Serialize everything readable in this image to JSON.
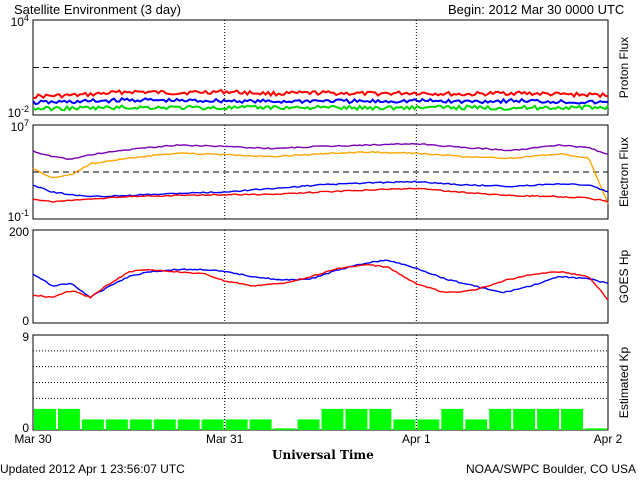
{
  "header": {
    "title": "Satellite Environment (3 day)",
    "begin": "Begin:  2012 Mar 30 0000 UTC"
  },
  "footer": {
    "updated": "Updated 2012 Apr  1 23:56:07 UTC",
    "credit": "NOAA/SWPC Boulder, CO USA",
    "xlabel": "Universal Time"
  },
  "x_ticks": [
    "Mar 30",
    "Mar 31",
    "Apr 1",
    "Apr 2"
  ],
  "colors": {
    "red": "#ff0000",
    "blue": "#0000ff",
    "green": "#00dd00",
    "purple": "#7b00b5",
    "orange": "#ffa500",
    "kp_bar": "#00ff00"
  },
  "chart_data": [
    {
      "type": "line",
      "panel": "proton",
      "ylabel": "Proton Flux",
      "yscale": "log",
      "ylim": [
        0.01,
        10000
      ],
      "y_tick_labels": [
        "10^4",
        "10^-2"
      ],
      "threshold": 10,
      "x": [
        0,
        0.25,
        0.5,
        0.75,
        1.0,
        1.25,
        1.5,
        1.75,
        2.0,
        2.25,
        2.5,
        2.75,
        3.0
      ],
      "series": [
        {
          "color": "red",
          "values": [
            0.15,
            0.18,
            0.3,
            0.25,
            0.3,
            0.22,
            0.25,
            0.22,
            0.25,
            0.2,
            0.25,
            0.2,
            0.18
          ]
        },
        {
          "color": "blue",
          "values": [
            0.06,
            0.07,
            0.09,
            0.08,
            0.08,
            0.07,
            0.08,
            0.07,
            0.08,
            0.07,
            0.08,
            0.07,
            0.06
          ]
        },
        {
          "color": "green",
          "values": [
            0.025,
            0.027,
            0.03,
            0.03,
            0.028,
            0.03,
            0.03,
            0.028,
            0.03,
            0.03,
            0.028,
            0.03,
            0.03
          ]
        }
      ]
    },
    {
      "type": "line",
      "panel": "electron",
      "ylabel": "Electron Flux",
      "yscale": "log",
      "ylim": [
        0.1,
        10000000
      ],
      "y_tick_labels": [
        "10^7",
        "10^-1"
      ],
      "threshold": 1000,
      "x": [
        0,
        0.1,
        0.2,
        0.3,
        0.5,
        0.75,
        1.0,
        1.25,
        1.5,
        1.75,
        2.0,
        2.25,
        2.5,
        2.75,
        2.9,
        3.0
      ],
      "series": [
        {
          "color": "purple",
          "values": [
            60000,
            20000,
            12000,
            30000,
            80000,
            200000,
            150000,
            100000,
            150000,
            200000,
            250000,
            120000,
            70000,
            200000,
            120000,
            30000
          ]
        },
        {
          "color": "orange",
          "values": [
            2000,
            300,
            600,
            5000,
            15000,
            40000,
            30000,
            20000,
            35000,
            50000,
            40000,
            20000,
            15000,
            35000,
            15000,
            2
          ]
        },
        {
          "color": "blue",
          "values": [
            80,
            20,
            12,
            8,
            10,
            15,
            20,
            40,
            80,
            120,
            150,
            80,
            60,
            100,
            80,
            20
          ]
        },
        {
          "color": "red",
          "values": [
            5,
            3,
            4,
            5,
            8,
            10,
            12,
            12,
            20,
            30,
            40,
            18,
            10,
            8,
            6,
            3
          ]
        }
      ]
    },
    {
      "type": "line",
      "panel": "goes_hp",
      "ylabel": "GOES Hp",
      "yscale": "linear",
      "ylim": [
        0,
        200
      ],
      "y_tick_labels": [
        "200",
        "0"
      ],
      "x": [
        0,
        0.1,
        0.2,
        0.3,
        0.4,
        0.5,
        0.6,
        0.75,
        0.9,
        1.0,
        1.15,
        1.3,
        1.45,
        1.6,
        1.75,
        1.85,
        2.0,
        2.15,
        2.3,
        2.45,
        2.6,
        2.75,
        2.9,
        3.0
      ],
      "series": [
        {
          "color": "blue",
          "values": [
            105,
            80,
            85,
            55,
            80,
            100,
            110,
            115,
            115,
            110,
            100,
            92,
            95,
            115,
            130,
            135,
            118,
            95,
            80,
            65,
            80,
            100,
            95,
            85
          ]
        },
        {
          "color": "red",
          "values": [
            60,
            55,
            70,
            55,
            85,
            110,
            115,
            110,
            105,
            90,
            80,
            85,
            100,
            118,
            125,
            120,
            85,
            65,
            70,
            90,
            105,
            110,
            100,
            50
          ]
        }
      ]
    },
    {
      "type": "bar",
      "panel": "kp",
      "ylabel": "Estimated Kp",
      "ylim": [
        0,
        9
      ],
      "y_tick_labels": [
        "9",
        "0"
      ],
      "bar_width_hours": 3,
      "values": [
        2,
        2,
        1,
        1,
        1,
        1,
        1,
        1,
        1,
        1,
        0,
        1,
        2,
        2,
        2,
        1,
        1,
        2,
        1,
        2,
        2,
        2,
        2,
        0
      ]
    }
  ]
}
